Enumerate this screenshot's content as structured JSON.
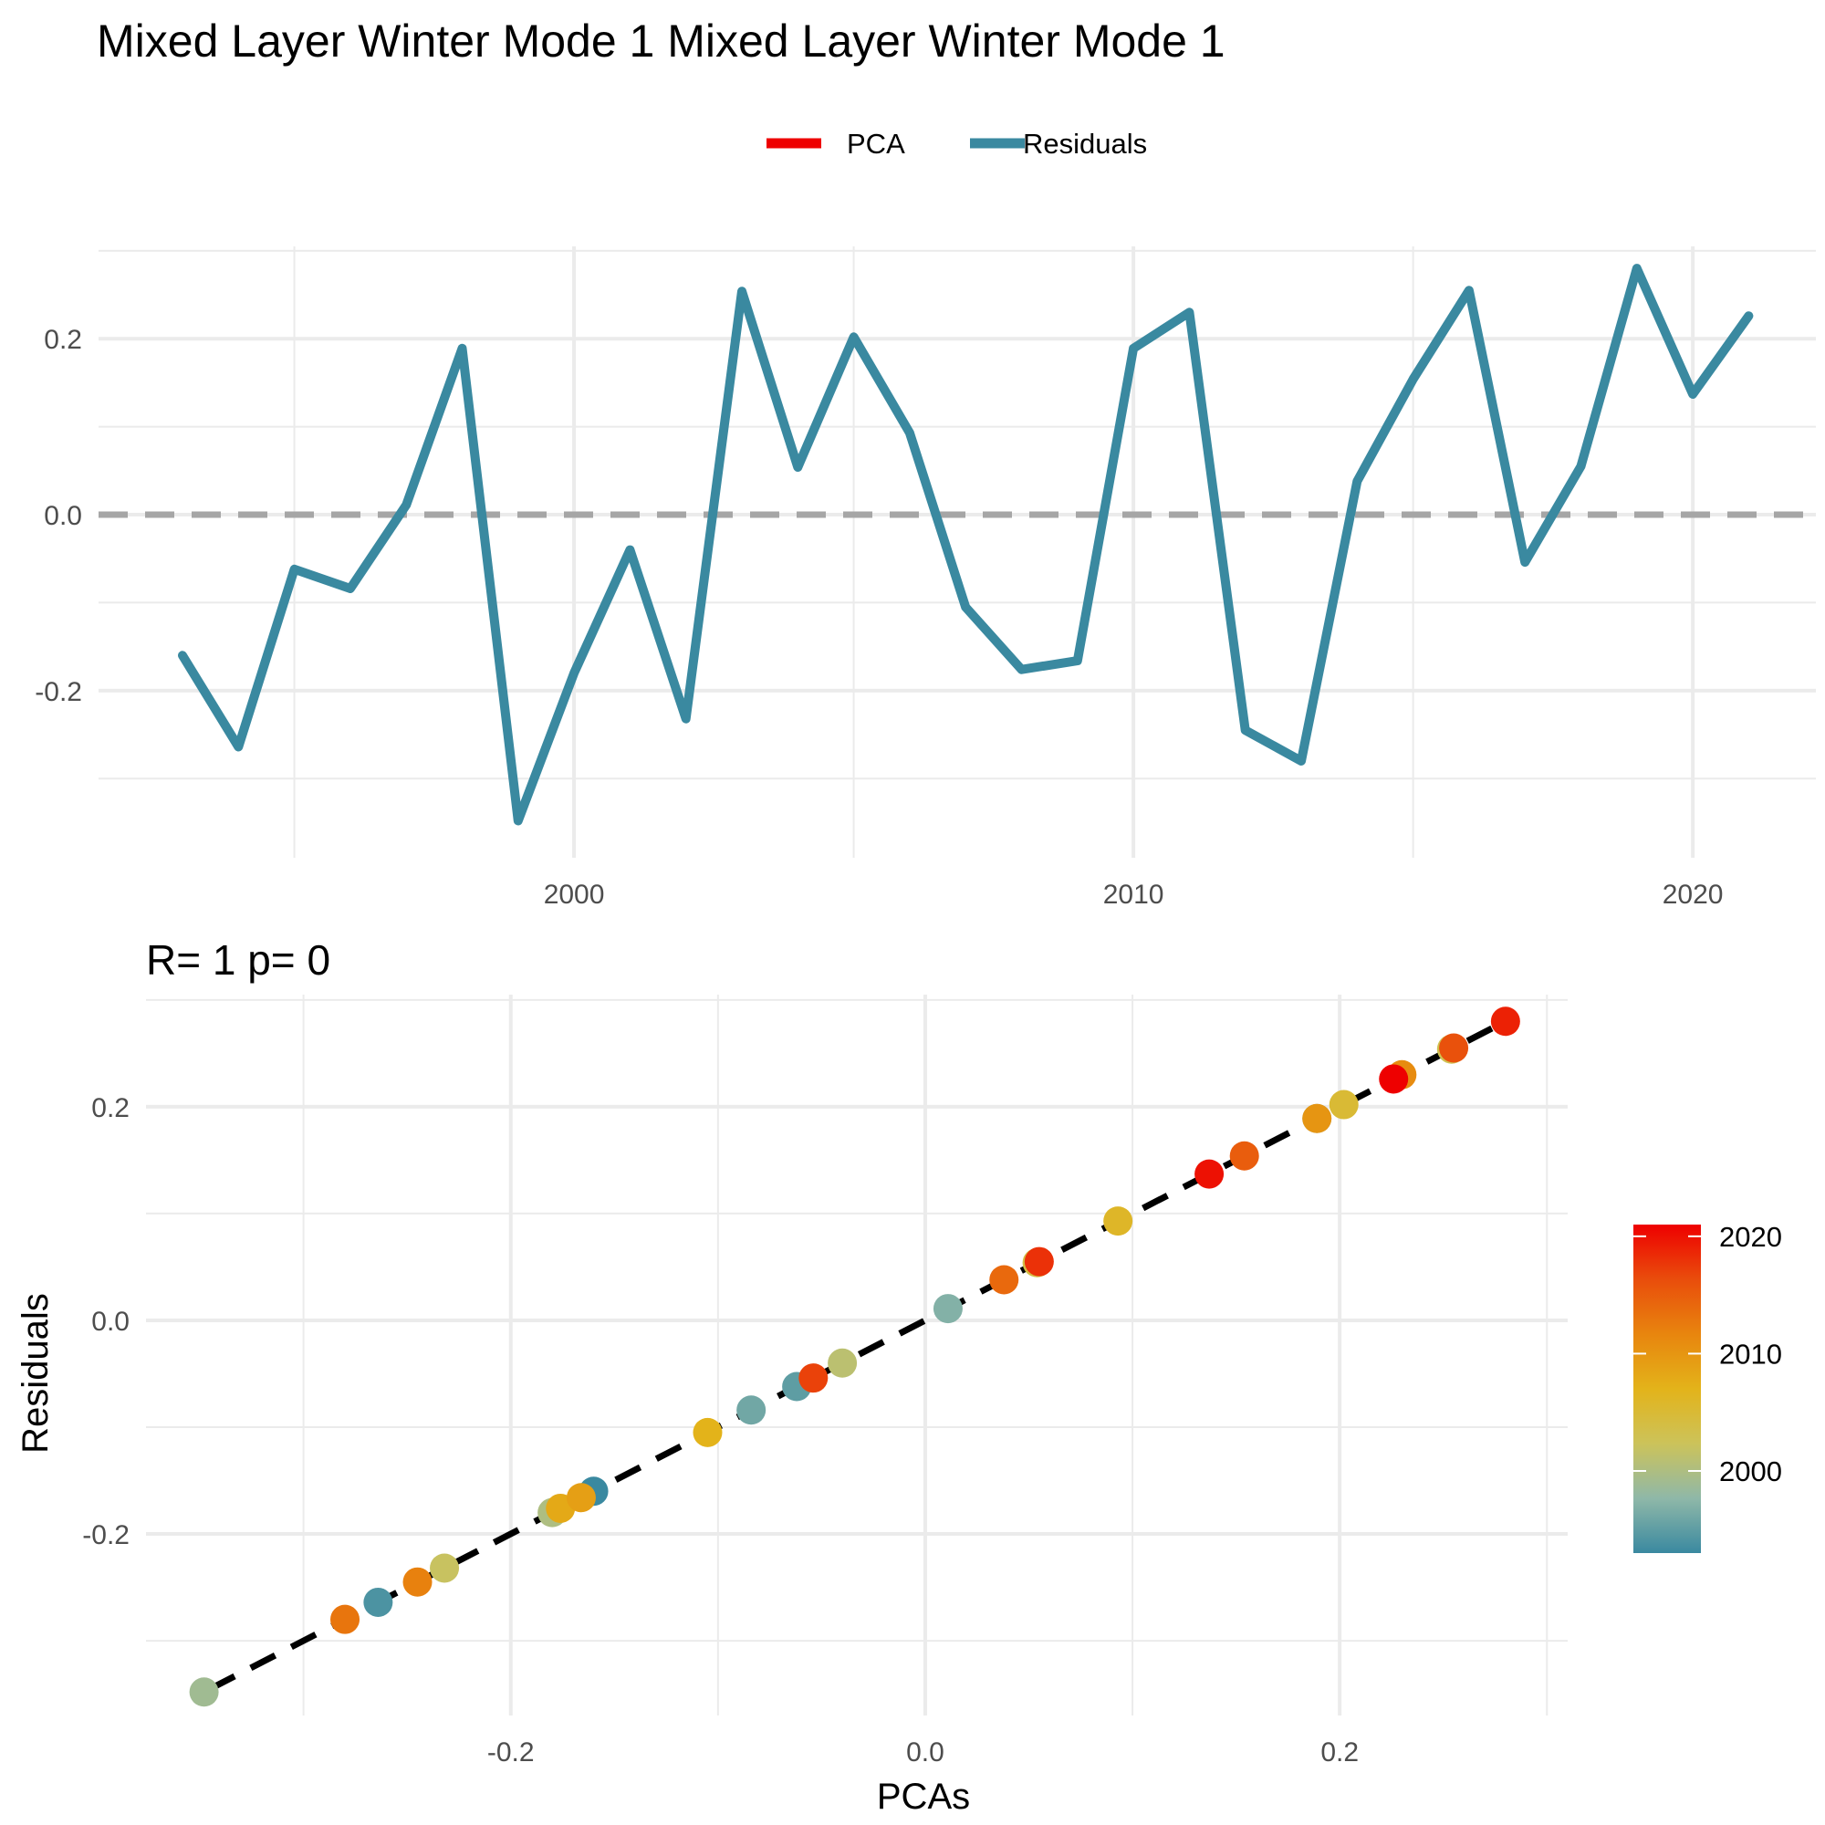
{
  "title": "Mixed Layer Winter Mode 1 Mixed Layer Winter Mode 1",
  "colors": {
    "pca": "#ee0000",
    "residuals": "#3a89a0",
    "zero_line": "#a6a6a6",
    "grid": "#ebebeb",
    "fit_line": "#000000"
  },
  "chart_data": [
    {
      "type": "line",
      "legend": {
        "position": "top",
        "entries": [
          {
            "label": "PCA",
            "color": "#ee0000"
          },
          {
            "label": "Residuals",
            "color": "#3a89a0"
          }
        ]
      },
      "x_tick_labels": [
        "2000",
        "2010",
        "2020"
      ],
      "x_ticks": [
        2000,
        2010,
        2020
      ],
      "y_tick_labels": [
        "-0.2",
        "0.0",
        "0.2"
      ],
      "y_ticks": [
        -0.2,
        0.0,
        0.2
      ],
      "xlim": [
        1991.5,
        2022.2
      ],
      "ylim": [
        -0.39,
        0.305
      ],
      "grid": true,
      "reference_line": {
        "y": 0,
        "style": "dashed"
      },
      "x": [
        1993,
        1994,
        1995,
        1996,
        1997,
        1998,
        1999,
        2000,
        2001,
        2002,
        2003,
        2004,
        2005,
        2006,
        2007,
        2008,
        2009,
        2010,
        2011,
        2012,
        2013,
        2014,
        2015,
        2016,
        2017,
        2018,
        2019,
        2020,
        2021
      ],
      "series": [
        {
          "name": "Residuals",
          "values": [
            -0.16,
            -0.264,
            -0.062,
            -0.084,
            0.011,
            0.189,
            -0.348,
            -0.18,
            -0.04,
            -0.232,
            0.254,
            0.054,
            0.202,
            0.093,
            -0.105,
            -0.176,
            -0.166,
            0.189,
            0.23,
            -0.245,
            -0.28,
            0.038,
            0.154,
            0.255,
            -0.054,
            0.055,
            0.28,
            0.137,
            0.226
          ]
        }
      ]
    },
    {
      "type": "scatter",
      "subtitle": "R= 1  p= 0",
      "xlabel": "PCAs",
      "ylabel": "Residuals",
      "x_tick_labels": [
        "-0.2",
        "0.0",
        "0.2"
      ],
      "x_ticks": [
        -0.2,
        0.0,
        0.2
      ],
      "y_tick_labels": [
        "-0.2",
        "0.0",
        "0.2"
      ],
      "y_ticks": [
        -0.2,
        0.0,
        0.2
      ],
      "xlim": [
        -0.376,
        0.31
      ],
      "ylim": [
        -0.37,
        0.305
      ],
      "grid": true,
      "fit_line": {
        "x": [
          -0.345,
          0.28
        ],
        "y": [
          -0.345,
          0.28
        ],
        "style": "dashed"
      },
      "colorbar": {
        "tick_labels": [
          "2000",
          "2010",
          "2020"
        ],
        "ticks": [
          2000,
          2010,
          2020
        ],
        "range": [
          1993,
          2021
        ],
        "colors": [
          "#3a89a0",
          "#8fb8a8",
          "#ccc35a",
          "#e3b31a",
          "#e8850e",
          "#e94d0c",
          "#ee0000"
        ]
      },
      "points": [
        {
          "x": -0.16,
          "y": -0.16,
          "year": 1993
        },
        {
          "x": -0.264,
          "y": -0.264,
          "year": 1994
        },
        {
          "x": -0.062,
          "y": -0.062,
          "year": 1995
        },
        {
          "x": -0.084,
          "y": -0.084,
          "year": 1996
        },
        {
          "x": 0.011,
          "y": 0.011,
          "year": 1997
        },
        {
          "x": 0.189,
          "y": 0.189,
          "year": 1998
        },
        {
          "x": -0.348,
          "y": -0.348,
          "year": 1999
        },
        {
          "x": -0.18,
          "y": -0.18,
          "year": 2000
        },
        {
          "x": -0.04,
          "y": -0.04,
          "year": 2001
        },
        {
          "x": -0.232,
          "y": -0.232,
          "year": 2002
        },
        {
          "x": 0.254,
          "y": 0.254,
          "year": 2003
        },
        {
          "x": 0.054,
          "y": 0.054,
          "year": 2004
        },
        {
          "x": 0.202,
          "y": 0.202,
          "year": 2005
        },
        {
          "x": 0.093,
          "y": 0.093,
          "year": 2006
        },
        {
          "x": -0.105,
          "y": -0.105,
          "year": 2007
        },
        {
          "x": -0.176,
          "y": -0.176,
          "year": 2008
        },
        {
          "x": -0.166,
          "y": -0.166,
          "year": 2009
        },
        {
          "x": 0.189,
          "y": 0.189,
          "year": 2010
        },
        {
          "x": 0.23,
          "y": 0.23,
          "year": 2011
        },
        {
          "x": -0.245,
          "y": -0.245,
          "year": 2012
        },
        {
          "x": -0.28,
          "y": -0.28,
          "year": 2013
        },
        {
          "x": 0.038,
          "y": 0.038,
          "year": 2014
        },
        {
          "x": 0.154,
          "y": 0.154,
          "year": 2015
        },
        {
          "x": 0.255,
          "y": 0.255,
          "year": 2016
        },
        {
          "x": -0.054,
          "y": -0.054,
          "year": 2017
        },
        {
          "x": 0.055,
          "y": 0.055,
          "year": 2018
        },
        {
          "x": 0.28,
          "y": 0.28,
          "year": 2019
        },
        {
          "x": 0.137,
          "y": 0.137,
          "year": 2020
        },
        {
          "x": 0.226,
          "y": 0.226,
          "year": 2021
        }
      ]
    }
  ]
}
